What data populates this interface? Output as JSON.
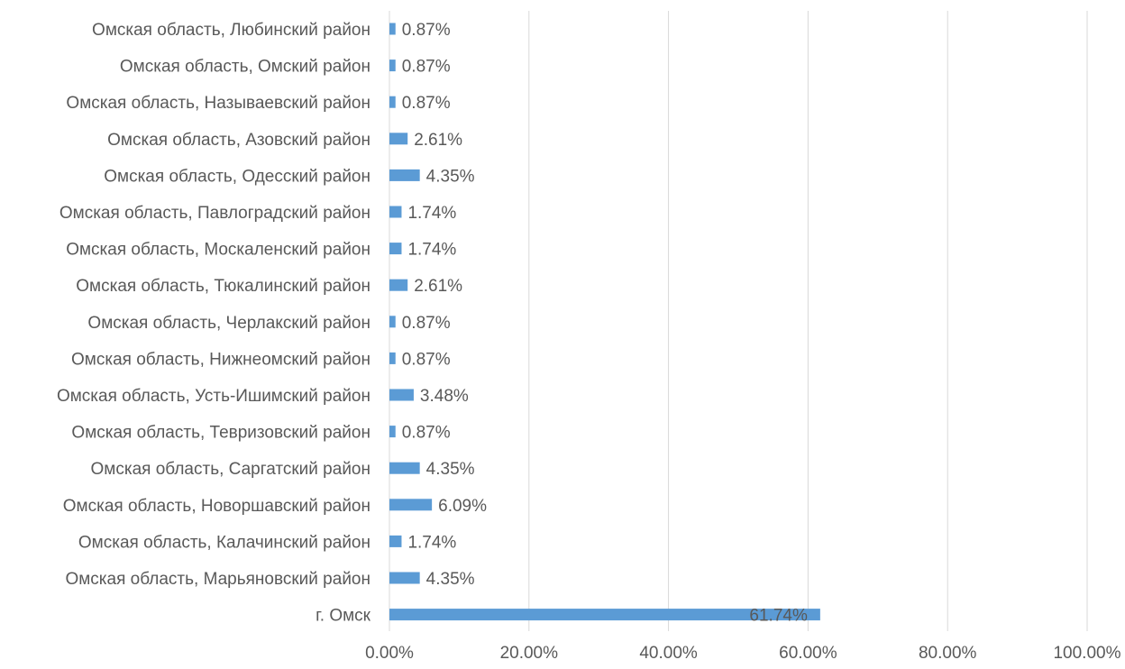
{
  "chart_data": {
    "type": "bar",
    "orientation": "horizontal",
    "title": "",
    "xlabel": "",
    "ylabel": "",
    "categories": [
      "Омская область, Любинский район",
      "Омская область, Омский район",
      "Омская область, Называевский район",
      "Омская область, Азовский район",
      "Омская область, Одесский район",
      "Омская область, Павлоградский район",
      "Омская область, Москаленский район",
      "Омская область, Тюкалинский район",
      "Омская область, Черлакский район",
      "Омская область, Нижнеомский район",
      "Омская область, Усть-Ишимский район",
      "Омская область, Тевризовский район",
      "Омская область, Саргатский район",
      "Омская область, Новоршавский район",
      "Омская область, Калачинский район",
      "Омская область, Марьяновский район",
      "г. Омск"
    ],
    "values": [
      0.87,
      0.87,
      0.87,
      2.61,
      4.35,
      1.74,
      1.74,
      2.61,
      0.87,
      0.87,
      3.48,
      0.87,
      4.35,
      6.09,
      1.74,
      4.35,
      61.74
    ],
    "data_labels": [
      "0.87%",
      "0.87%",
      "0.87%",
      "2.61%",
      "4.35%",
      "1.74%",
      "1.74%",
      "2.61%",
      "0.87%",
      "0.87%",
      "3.48%",
      "0.87%",
      "4.35%",
      "6.09%",
      "1.74%",
      "4.35%",
      "61.74%"
    ],
    "xlim": [
      0,
      100
    ],
    "x_ticks": [
      0,
      20,
      40,
      60,
      80,
      100
    ],
    "x_tick_labels": [
      "0.00%",
      "20.00%",
      "40.00%",
      "60.00%",
      "80.00%",
      "100.00%"
    ],
    "grid": true,
    "legend": "none",
    "colors": {
      "bar": "#5b9bd5",
      "grid": "#d9d9d9",
      "text": "#595959"
    }
  }
}
